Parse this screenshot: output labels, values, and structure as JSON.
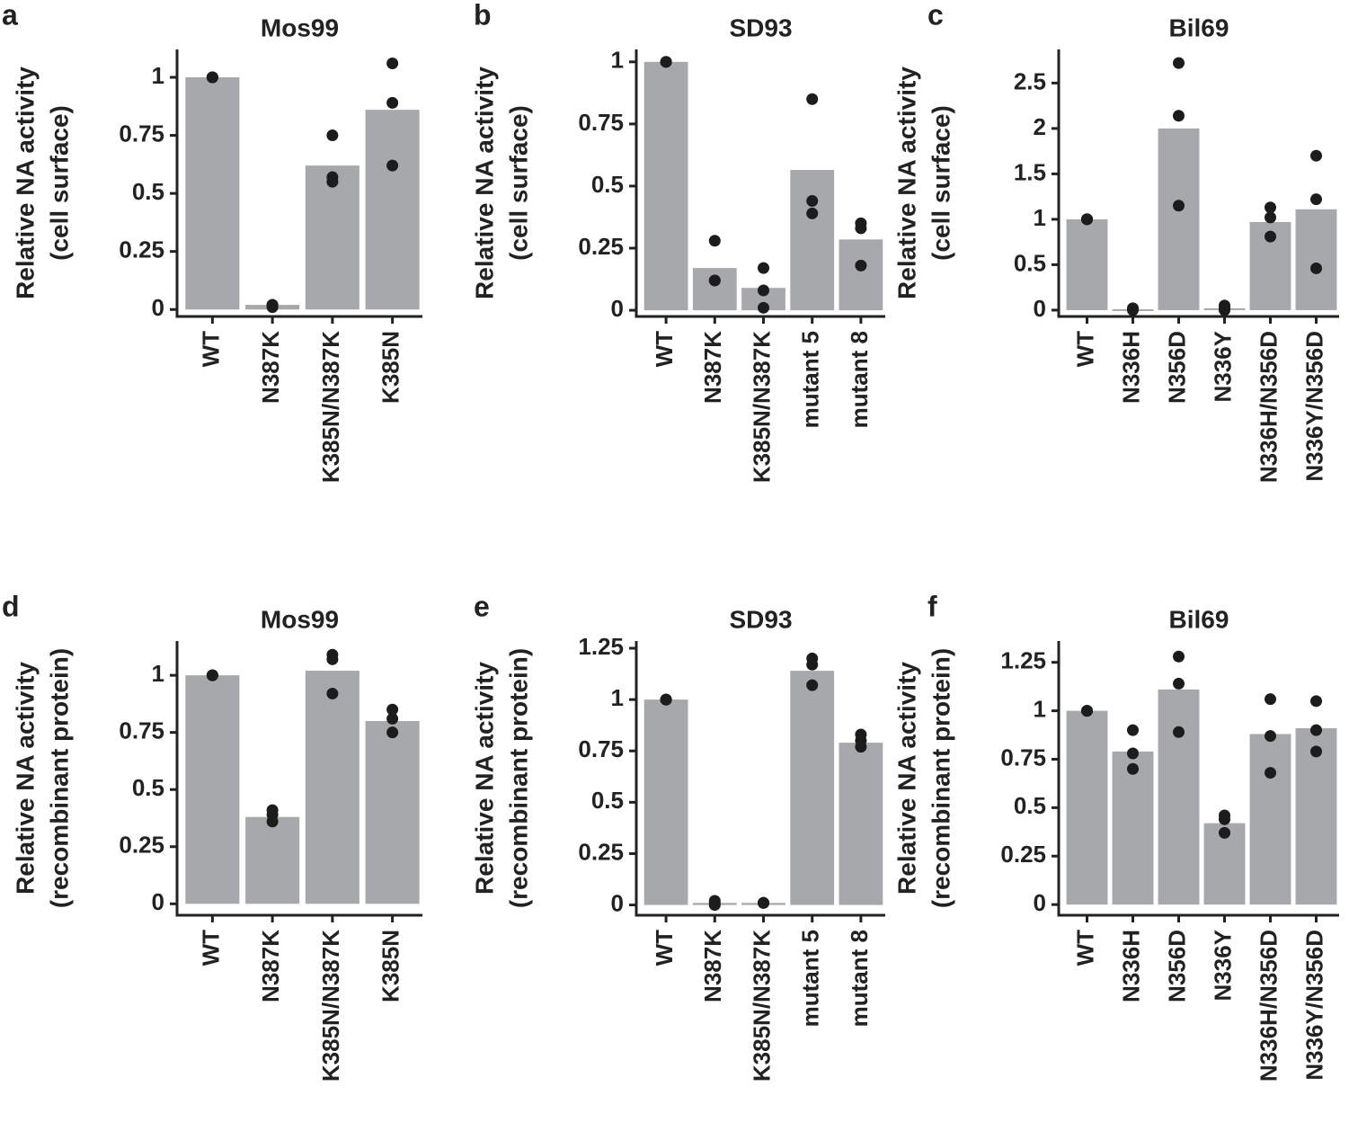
{
  "chart_data": [
    {
      "type": "bar",
      "panel": "a",
      "title": "Mos99",
      "ylabel": [
        "Relative NA activity",
        "(cell surface)"
      ],
      "categories": [
        "WT",
        "N387K",
        "K385N/N387K",
        "K385N"
      ],
      "values": [
        1,
        0.02,
        0.62,
        0.86
      ],
      "points": [
        [
          1,
          1,
          1
        ],
        [
          0.02,
          0.01,
          0.02
        ],
        [
          0.75,
          0.57,
          0.55
        ],
        [
          1.06,
          0.89,
          0.62
        ]
      ],
      "color": "#a7a8ab",
      "point_color": "#1c1c1c",
      "ylim": [
        -0.03,
        1.12
      ],
      "yticks": [
        0,
        0.25,
        0.5,
        0.75,
        1
      ]
    },
    {
      "type": "bar",
      "panel": "b",
      "title": "SD93",
      "ylabel": [
        "Relative NA activity",
        "(cell surface)"
      ],
      "categories": [
        "WT",
        "N387K",
        "K385N/N387K",
        "mutant 5",
        "mutant 8"
      ],
      "values": [
        1,
        0.17,
        0.09,
        0.565,
        0.285
      ],
      "points": [
        [
          1,
          1,
          1
        ],
        [
          0.28,
          0.12,
          0.12
        ],
        [
          0.17,
          0.08,
          0.01
        ],
        [
          0.85,
          0.44,
          0.39
        ],
        [
          0.35,
          0.33,
          0.18
        ]
      ],
      "color": "#a7a8ab",
      "point_color": "#1c1c1c",
      "ylim": [
        -0.025,
        1.05
      ],
      "yticks": [
        0,
        0.25,
        0.5,
        0.75,
        1
      ]
    },
    {
      "type": "bar",
      "panel": "c",
      "title": "Bil69",
      "ylabel": [
        "Relative NA activity",
        "(cell surface)"
      ],
      "categories": [
        "WT",
        "N336H",
        "N356D",
        "N336Y",
        "N336H/N356D",
        "N336Y/N356D"
      ],
      "values": [
        1,
        0.01,
        2.0,
        0.02,
        0.97,
        1.11
      ],
      "points": [
        [
          1,
          1,
          1
        ],
        [
          0.02,
          0,
          0.01
        ],
        [
          2.72,
          2.14,
          1.15
        ],
        [
          0.05,
          0.02,
          0
        ],
        [
          1.13,
          1.02,
          0.81
        ],
        [
          1.7,
          1.22,
          0.46
        ]
      ],
      "color": "#a7a8ab",
      "point_color": "#1c1c1c",
      "ylim": [
        -0.07,
        2.87
      ],
      "yticks": [
        0,
        0.5,
        1,
        1.5,
        2,
        2.5
      ]
    },
    {
      "type": "bar",
      "panel": "d",
      "title": "Mos99",
      "ylabel": [
        "Relative NA activity",
        "(recombinant protein)"
      ],
      "categories": [
        "WT",
        "N387K",
        "K385N/N387K",
        "K385N"
      ],
      "values": [
        1,
        0.38,
        1.02,
        0.8
      ],
      "points": [
        [
          1,
          1,
          1
        ],
        [
          0.41,
          0.39,
          0.36
        ],
        [
          1.09,
          1.07,
          0.92
        ],
        [
          0.85,
          0.81,
          0.75
        ]
      ],
      "color": "#a7a8ab",
      "point_color": "#1c1c1c",
      "ylim": [
        -0.05,
        1.15
      ],
      "yticks": [
        0,
        0.25,
        0.5,
        0.75,
        1
      ]
    },
    {
      "type": "bar",
      "panel": "e",
      "title": "SD93",
      "ylabel": [
        "Relative NA activity",
        "(recombinant protein)"
      ],
      "categories": [
        "WT",
        "N387K",
        "K385N/N387K",
        "mutant 5",
        "mutant 8"
      ],
      "values": [
        1,
        0.01,
        0.01,
        1.14,
        0.79
      ],
      "points": [
        [
          1,
          1,
          1
        ],
        [
          0.02,
          0.01,
          0
        ],
        [
          0.01,
          0.01,
          0.01
        ],
        [
          1.2,
          1.17,
          1.07
        ],
        [
          0.83,
          0.8,
          0.77
        ]
      ],
      "color": "#a7a8ab",
      "point_color": "#1c1c1c",
      "ylim": [
        -0.05,
        1.285
      ],
      "yticks": [
        0,
        0.25,
        0.5,
        0.75,
        1,
        1.25
      ]
    },
    {
      "type": "bar",
      "panel": "f",
      "title": "Bil69",
      "ylabel": [
        "Relative NA activity",
        "(recombinant protein)"
      ],
      "categories": [
        "WT",
        "N336H",
        "N356D",
        "N336Y",
        "N336H/N356D",
        "N336Y/N356D"
      ],
      "values": [
        1,
        0.79,
        1.11,
        0.42,
        0.88,
        0.91
      ],
      "points": [
        [
          1,
          1,
          1
        ],
        [
          0.9,
          0.78,
          0.7
        ],
        [
          1.28,
          1.14,
          0.89
        ],
        [
          0.46,
          0.44,
          0.37
        ],
        [
          1.06,
          0.87,
          0.68
        ],
        [
          1.05,
          0.9,
          0.79
        ]
      ],
      "color": "#a7a8ab",
      "point_color": "#1c1c1c",
      "ylim": [
        -0.055,
        1.36
      ],
      "yticks": [
        0,
        0.25,
        0.5,
        0.75,
        1,
        1.25
      ]
    }
  ]
}
